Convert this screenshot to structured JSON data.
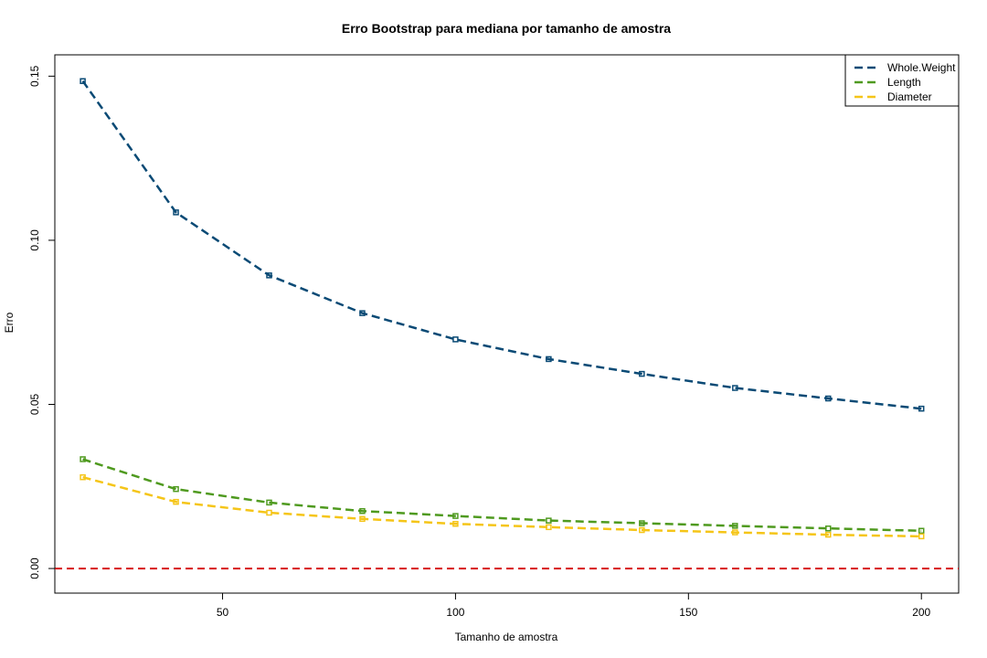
{
  "chart_data": {
    "type": "line",
    "title": "Erro Bootstrap para mediana por tamanho de amostra",
    "xlabel": "Tamanho de amostra",
    "ylabel": "Erro",
    "xlim": [
      14,
      208
    ],
    "ylim": [
      -0.0075,
      0.1565
    ],
    "xticks": [
      50,
      100,
      150,
      200
    ],
    "yticks": [
      0.0,
      0.05,
      0.1,
      0.15
    ],
    "ytick_labels": [
      "0.00",
      "0.05",
      "0.10",
      "0.15"
    ],
    "x": [
      20,
      40,
      60,
      80,
      100,
      120,
      140,
      160,
      180,
      200
    ],
    "series": [
      {
        "name": "Whole.Weight",
        "color": "#0a4a75",
        "values": [
          0.1485,
          0.1085,
          0.0893,
          0.0778,
          0.0698,
          0.0638,
          0.0593,
          0.055,
          0.0518,
          0.0487
        ]
      },
      {
        "name": "Length",
        "color": "#4f9a1f",
        "values": [
          0.0333,
          0.0242,
          0.0201,
          0.0175,
          0.016,
          0.0146,
          0.0138,
          0.013,
          0.0122,
          0.0115
        ]
      },
      {
        "name": "Diameter",
        "color": "#f5c518",
        "values": [
          0.0278,
          0.0203,
          0.017,
          0.0151,
          0.0136,
          0.0126,
          0.0117,
          0.011,
          0.0103,
          0.0098
        ]
      }
    ],
    "reference_line": {
      "y": 0.0,
      "color": "#d7191c",
      "style": "dashed"
    },
    "legend_position": "top-right",
    "grid": false
  }
}
